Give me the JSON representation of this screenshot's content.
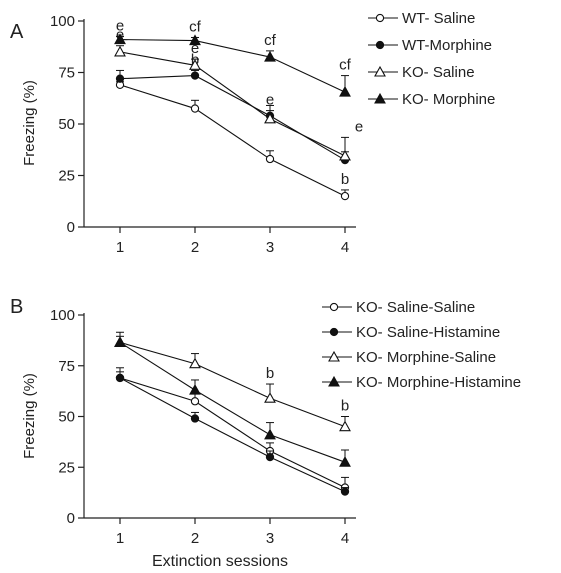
{
  "figure": {
    "xlabel": "Extinction sessions"
  },
  "chart_data": [
    {
      "panel": "A",
      "type": "line",
      "ylabel": "Freezing (%)",
      "x": [
        1,
        2,
        3,
        4
      ],
      "xticks": [
        "1",
        "2",
        "3",
        "4"
      ],
      "yticks": [
        "0",
        "25",
        "50",
        "75",
        "100"
      ],
      "ylim": [
        0,
        100
      ],
      "legend_position": "top-right",
      "series": [
        {
          "name": "WT- Saline",
          "marker": "circle-open",
          "values": [
            69,
            57.5,
            33,
            15
          ],
          "errors": [
            1.5,
            4,
            4,
            3
          ],
          "annotations": [
            "",
            "",
            "",
            "b"
          ]
        },
        {
          "name": "WT-Morphine",
          "marker": "circle-filled",
          "values": [
            72,
            73.5,
            54,
            32.5
          ],
          "errors": [
            4,
            2.5,
            5,
            4
          ],
          "annotations": [
            "",
            "b",
            "",
            ""
          ]
        },
        {
          "name": "KO- Saline",
          "marker": "triangle-open",
          "values": [
            85,
            78.5,
            52.5,
            34.5
          ],
          "errors": [
            3,
            3,
            4,
            9
          ],
          "annotations": [
            "e",
            "e",
            "e",
            "e"
          ]
        },
        {
          "name": "KO- Morphine",
          "marker": "triangle-filled",
          "values": [
            91,
            90.5,
            82.5,
            65.5
          ],
          "errors": [
            1.5,
            1.5,
            3,
            8
          ],
          "annotations": [
            "e",
            "cf",
            "cf",
            "cf"
          ]
        }
      ]
    },
    {
      "panel": "B",
      "type": "line",
      "ylabel": "Freezing (%)",
      "xlabel": "Extinction sessions",
      "x": [
        1,
        2,
        3,
        4
      ],
      "xticks": [
        "1",
        "2",
        "3",
        "4"
      ],
      "yticks": [
        "0",
        "25",
        "50",
        "75",
        "100"
      ],
      "ylim": [
        0,
        100
      ],
      "legend_position": "top-right",
      "series": [
        {
          "name": "KO- Saline-Saline",
          "marker": "circle-open",
          "values": [
            69,
            57.5,
            33,
            15
          ],
          "errors": [
            3,
            4,
            4,
            5
          ],
          "annotations": [
            "",
            "",
            "",
            ""
          ]
        },
        {
          "name": "KO- Saline-Histamine",
          "marker": "circle-filled",
          "values": [
            69,
            49,
            30,
            13
          ],
          "errors": [
            5,
            3,
            3,
            2
          ],
          "annotations": [
            "",
            "",
            "",
            ""
          ]
        },
        {
          "name": "KO- Morphine-Saline",
          "marker": "triangle-open",
          "values": [
            86.5,
            76,
            59,
            45
          ],
          "errors": [
            5,
            5,
            7,
            5
          ],
          "annotations": [
            "",
            "",
            "b",
            "b"
          ]
        },
        {
          "name": "KO- Morphine-Histamine",
          "marker": "triangle-filled",
          "values": [
            86.5,
            63,
            41,
            27.5
          ],
          "errors": [
            3,
            5,
            6,
            6
          ],
          "annotations": [
            "",
            "",
            "",
            ""
          ]
        }
      ]
    }
  ]
}
